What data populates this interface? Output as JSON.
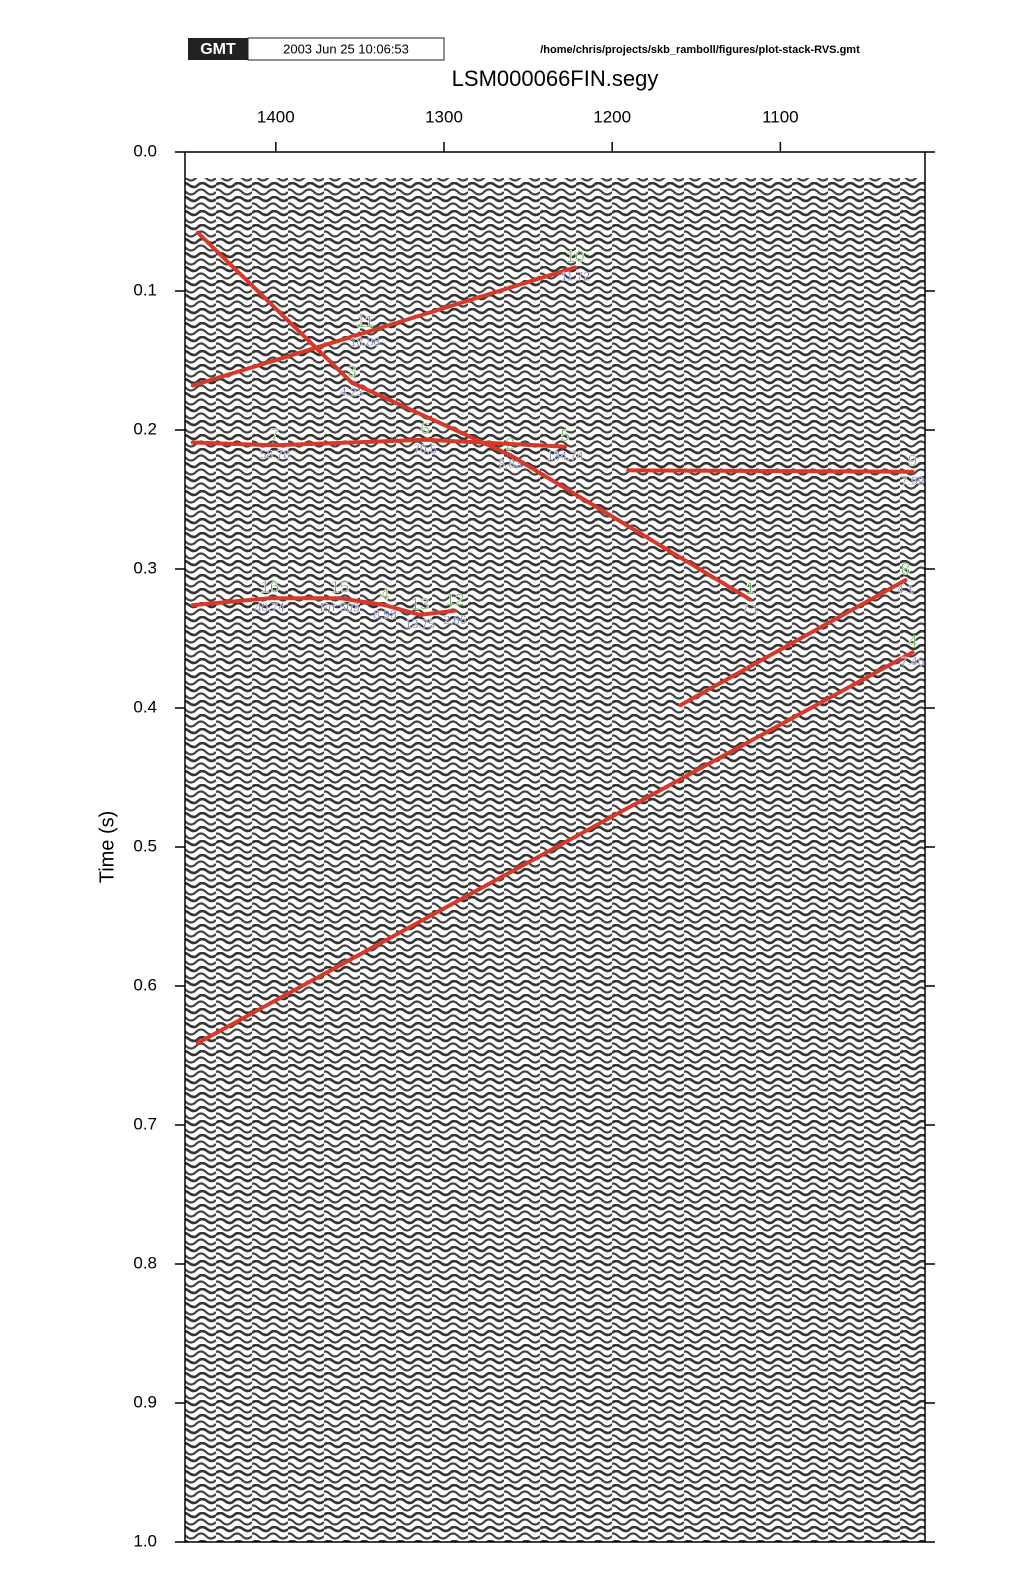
{
  "chart_data": {
    "type": "seismic",
    "stamp": "GMT",
    "timestamp": "2003 Jun 25 10:06:53",
    "path": "/home/chris/projects/skb_ramboll/figures/plot-stack-RVS.gmt",
    "title": "LSM000066FIN.segy",
    "y_label": "Time (s)",
    "xlim": [
      1454,
      1014
    ],
    "xticks": [
      1400,
      1300,
      1200,
      1100
    ],
    "ylim": [
      0,
      1
    ],
    "yticks": [
      {
        "value": 0,
        "label": "0.0"
      },
      0.1,
      0.2,
      0.3,
      0.4,
      0.5,
      0.6,
      0.7,
      0.8,
      0.9,
      {
        "value": 1,
        "label": "1.0"
      }
    ],
    "color": "#d8382a",
    "picks": [
      {
        "label": "11",
        "value_label": "18.86",
        "x": [
          1449.4,
          1347.0
        ],
        "t": [
          0.168,
          0.13
        ]
      },
      {
        "label": "10",
        "value_label": "11.72",
        "x": [
          1347.0,
          1222.0
        ],
        "t": [
          0.13,
          0.083
        ]
      },
      {
        "label": "3",
        "value_label": "4.23",
        "x": [
          1446.4,
          1354.8
        ],
        "t": [
          0.058,
          0.166
        ]
      },
      {
        "label": "2",
        "value_label": "8.83",
        "x": [
          1354.8,
          1260.7
        ],
        "t": [
          0.166,
          0.218
        ]
      },
      {
        "label": "1",
        "value_label": "7.1",
        "x": [
          1260.7,
          1117.9
        ],
        "t": [
          0.218,
          0.322
        ]
      },
      {
        "label": "7",
        "value_label": "58.78",
        "x": [
          1449.4,
          1400.6
        ],
        "t": [
          0.209,
          0.211
        ]
      },
      {
        "label": "6",
        "value_label": "70.5",
        "x": [
          1400.6,
          1311.3
        ],
        "t": [
          0.211,
          0.207
        ]
      },
      {
        "label": "5",
        "value_label": "134.74",
        "x": [
          1311.3,
          1228.0
        ],
        "t": [
          0.207,
          0.212
        ]
      },
      {
        "label": "9",
        "value_label": "7.99",
        "x": [
          1190.5,
          1021.4
        ],
        "t": [
          0.229,
          0.23
        ]
      },
      {
        "label": "16",
        "value_label": "40.74",
        "x": [
          1449.4,
          1403.6
        ],
        "t": [
          0.326,
          0.321
        ]
      },
      {
        "label": "15",
        "value_label": "Err 503",
        "x": [
          1403.6,
          1361.9
        ],
        "t": [
          0.321,
          0.321
        ]
      },
      {
        "label": "4",
        "value_label": "8.93",
        "x": [
          1361.9,
          1335.1
        ],
        "t": [
          0.321,
          0.326
        ]
      },
      {
        "label": "13",
        "value_label": "13.75",
        "x": [
          1335.1,
          1314.3
        ],
        "t": [
          0.326,
          0.333
        ]
      },
      {
        "label": "12",
        "value_label": "2.66",
        "x": [
          1314.3,
          1293.5
        ],
        "t": [
          0.333,
          0.33
        ]
      },
      {
        "label": "8",
        "value_label": "4.1",
        "x": [
          1159.5,
          1025.6
        ],
        "t": [
          0.398,
          0.308
        ]
      },
      {
        "label": "4",
        "value_label": "7.46",
        "x": [
          1446.4,
          1021.4
        ],
        "t": [
          0.641,
          0.36
        ]
      }
    ]
  }
}
